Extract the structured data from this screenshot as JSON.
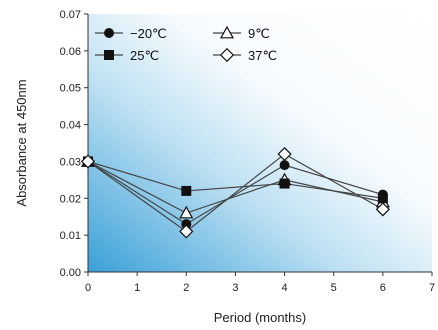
{
  "chart_data": {
    "type": "line",
    "xlabel": "Period (months)",
    "ylabel": "Absorbance at 450nm",
    "xlim": [
      0,
      7
    ],
    "ylim": [
      0,
      0.07
    ],
    "x_ticks": [
      "0",
      "1",
      "2",
      "3",
      "4",
      "5",
      "6",
      "7"
    ],
    "y_ticks": [
      "0.00",
      "0.01",
      "0.02",
      "0.03",
      "0.04",
      "0.05",
      "0.06",
      "0.07"
    ],
    "x": [
      0,
      2,
      4,
      6
    ],
    "grid": false,
    "legend_position": "top-left",
    "series": [
      {
        "name": "−20℃",
        "marker": "filled-circle",
        "values": [
          0.03,
          0.013,
          0.029,
          0.021
        ]
      },
      {
        "name": "9℃",
        "marker": "open-triangle",
        "values": [
          0.03,
          0.016,
          0.025,
          0.019
        ]
      },
      {
        "name": "25℃",
        "marker": "filled-square",
        "values": [
          0.03,
          0.022,
          0.024,
          0.02
        ]
      },
      {
        "name": "37℃",
        "marker": "open-diamond",
        "values": [
          0.03,
          0.011,
          0.032,
          0.017
        ]
      }
    ],
    "colors": {
      "line": "#444444",
      "marker": "#111111",
      "background_light": "#ffffff",
      "background_accent": "#3aa0d8"
    }
  }
}
